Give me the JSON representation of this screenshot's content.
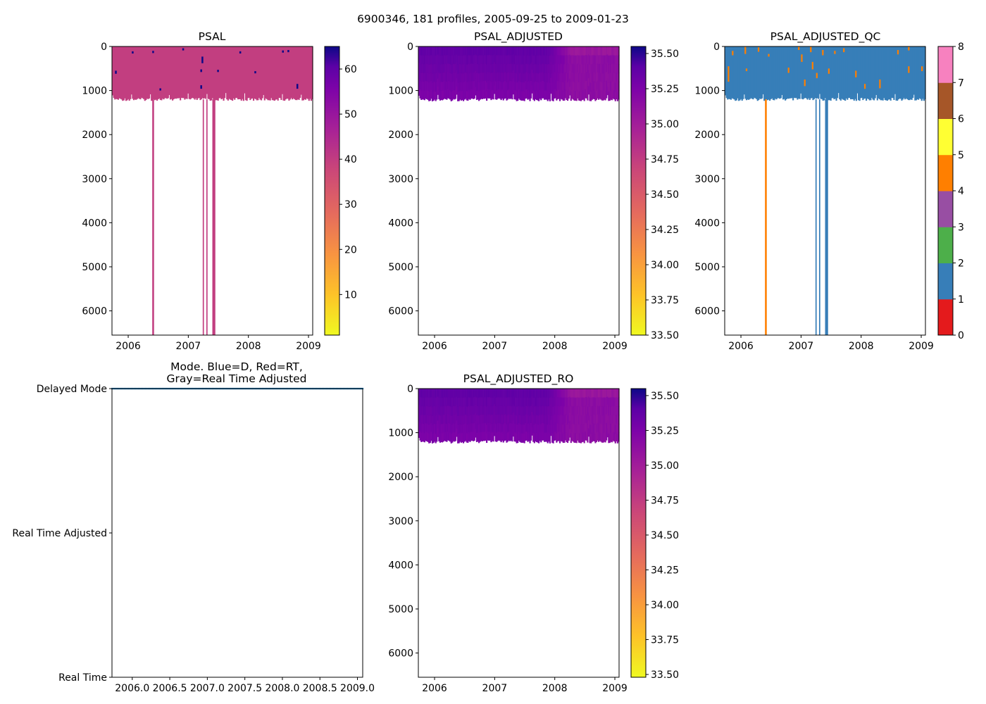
{
  "figure": {
    "suptitle": "6900346, 181 profiles, 2005-09-25 to 2009-01-23"
  },
  "chart_data": [
    {
      "id": "psal",
      "type": "heatmap",
      "title": "PSAL",
      "xlim": [
        2005.73,
        2009.07
      ],
      "ylim": [
        6550,
        0
      ],
      "x_ticks": [
        2006,
        2007,
        2008,
        2009
      ],
      "x_tick_labels": [
        "2006",
        "2007",
        "2008",
        "2009"
      ],
      "y_ticks": [
        0,
        1000,
        2000,
        3000,
        4000,
        5000,
        6000
      ],
      "y_tick_labels": [
        "0",
        "1000",
        "2000",
        "3000",
        "4000",
        "5000",
        "6000"
      ],
      "colormap": "plasma_r",
      "color_range": [
        1,
        65
      ],
      "base_value": 35.0,
      "profile_depth": 1200,
      "deep_profiles": [
        {
          "x": 2006.4,
          "width": 0.03,
          "depth": 6550
        },
        {
          "x": 2007.24,
          "width": 0.02,
          "depth": 6550
        },
        {
          "x": 2007.3,
          "width": 0.02,
          "depth": 6550
        },
        {
          "x": 2007.4,
          "width": 0.05,
          "depth": 6550
        }
      ],
      "spikes": [
        {
          "x": 2005.78,
          "y0": 550,
          "y1": 620,
          "value": 65
        },
        {
          "x": 2006.06,
          "y0": 110,
          "y1": 160,
          "value": 65
        },
        {
          "x": 2006.4,
          "y0": 100,
          "y1": 150,
          "value": 65
        },
        {
          "x": 2006.52,
          "y0": 950,
          "y1": 1000,
          "value": 65
        },
        {
          "x": 2006.9,
          "y0": 40,
          "y1": 90,
          "value": 65
        },
        {
          "x": 2007.22,
          "y0": 230,
          "y1": 380,
          "value": 65
        },
        {
          "x": 2007.2,
          "y0": 520,
          "y1": 580,
          "value": 65
        },
        {
          "x": 2007.2,
          "y0": 880,
          "y1": 960,
          "value": 65
        },
        {
          "x": 2007.48,
          "y0": 530,
          "y1": 580,
          "value": 65
        },
        {
          "x": 2007.85,
          "y0": 110,
          "y1": 160,
          "value": 65
        },
        {
          "x": 2008.1,
          "y0": 560,
          "y1": 610,
          "value": 65
        },
        {
          "x": 2008.56,
          "y0": 90,
          "y1": 140,
          "value": 65
        },
        {
          "x": 2008.65,
          "y0": 80,
          "y1": 130,
          "value": 65
        },
        {
          "x": 2008.8,
          "y0": 850,
          "y1": 960,
          "value": 65
        }
      ],
      "colorbar": {
        "ticks": [
          10,
          20,
          30,
          40,
          50,
          60
        ],
        "tick_labels": [
          "10",
          "20",
          "30",
          "40",
          "50",
          "60"
        ]
      }
    },
    {
      "id": "psal-adjusted",
      "type": "heatmap",
      "title": "PSAL_ADJUSTED",
      "xlim": [
        2005.73,
        2009.07
      ],
      "ylim": [
        6550,
        0
      ],
      "x_ticks": [
        2006,
        2007,
        2008,
        2009
      ],
      "x_tick_labels": [
        "2006",
        "2007",
        "2008",
        "2009"
      ],
      "y_ticks": [
        0,
        1000,
        2000,
        3000,
        4000,
        5000,
        6000
      ],
      "y_tick_labels": [
        "0",
        "1000",
        "2000",
        "3000",
        "4000",
        "5000",
        "6000"
      ],
      "colormap": "plasma_r",
      "color_range": [
        33.5,
        35.55
      ],
      "surface_value": 35.25,
      "bottom_value": 35.05,
      "late_value": 34.95,
      "profile_depth": 1200,
      "colorbar": {
        "ticks": [
          33.5,
          33.75,
          34.0,
          34.25,
          34.5,
          34.75,
          35.0,
          35.25,
          35.5
        ],
        "tick_labels": [
          "33.50",
          "33.75",
          "34.00",
          "34.25",
          "34.50",
          "34.75",
          "35.00",
          "35.25",
          "35.50"
        ]
      }
    },
    {
      "id": "psal-adjusted-qc",
      "type": "heatmap",
      "title": "PSAL_ADJUSTED_QC",
      "xlim": [
        2005.73,
        2009.07
      ],
      "ylim": [
        6550,
        0
      ],
      "x_ticks": [
        2006,
        2007,
        2008,
        2009
      ],
      "x_tick_labels": [
        "2006",
        "2007",
        "2008",
        "2009"
      ],
      "y_ticks": [
        0,
        1000,
        2000,
        3000,
        4000,
        5000,
        6000
      ],
      "y_tick_labels": [
        "0",
        "1000",
        "2000",
        "3000",
        "4000",
        "5000",
        "6000"
      ],
      "colormap": "Set1 (discrete)",
      "color_range": [
        0,
        8
      ],
      "base_flag": 1,
      "profile_depth": 1200,
      "deep_profiles": [
        {
          "x": 2006.4,
          "width": 0.03,
          "depth": 6550,
          "flag": 4
        },
        {
          "x": 2007.24,
          "width": 0.02,
          "depth": 6550,
          "flag": 1
        },
        {
          "x": 2007.3,
          "width": 0.02,
          "depth": 6550,
          "flag": 1
        },
        {
          "x": 2007.4,
          "width": 0.05,
          "depth": 6550,
          "flag": 1
        }
      ],
      "flag_4_patches": [
        {
          "x": 2005.78,
          "y0": 450,
          "y1": 800
        },
        {
          "x": 2005.85,
          "y0": 100,
          "y1": 200
        },
        {
          "x": 2006.06,
          "y0": 10,
          "y1": 170
        },
        {
          "x": 2006.08,
          "y0": 500,
          "y1": 560
        },
        {
          "x": 2006.28,
          "y0": 20,
          "y1": 120
        },
        {
          "x": 2006.45,
          "y0": 170,
          "y1": 230
        },
        {
          "x": 2006.78,
          "y0": 480,
          "y1": 600
        },
        {
          "x": 2006.95,
          "y0": 10,
          "y1": 80
        },
        {
          "x": 2007.0,
          "y0": 180,
          "y1": 350
        },
        {
          "x": 2007.05,
          "y0": 750,
          "y1": 900
        },
        {
          "x": 2007.15,
          "y0": 10,
          "y1": 130
        },
        {
          "x": 2007.18,
          "y0": 350,
          "y1": 520
        },
        {
          "x": 2007.25,
          "y0": 600,
          "y1": 720
        },
        {
          "x": 2007.35,
          "y0": 80,
          "y1": 200
        },
        {
          "x": 2007.45,
          "y0": 500,
          "y1": 620
        },
        {
          "x": 2007.55,
          "y0": 100,
          "y1": 170
        },
        {
          "x": 2007.7,
          "y0": 40,
          "y1": 130
        },
        {
          "x": 2007.9,
          "y0": 550,
          "y1": 700
        },
        {
          "x": 2008.05,
          "y0": 850,
          "y1": 960
        },
        {
          "x": 2008.3,
          "y0": 750,
          "y1": 950
        },
        {
          "x": 2008.6,
          "y0": 80,
          "y1": 180
        },
        {
          "x": 2008.78,
          "y0": 10,
          "y1": 90
        },
        {
          "x": 2008.78,
          "y0": 450,
          "y1": 600
        },
        {
          "x": 2009.0,
          "y0": 450,
          "y1": 560
        }
      ],
      "colorbar": {
        "categories": [
          0,
          1,
          2,
          3,
          4,
          5,
          6,
          7
        ],
        "colors": [
          "#e41a1c",
          "#377eb8",
          "#4daf4a",
          "#984ea3",
          "#ff7f00",
          "#ffff33",
          "#a65628",
          "#f781bf"
        ],
        "top_color": "#999999",
        "ticks": [
          0,
          1,
          2,
          3,
          4,
          5,
          6,
          7,
          8
        ],
        "tick_labels": [
          "0",
          "1",
          "2",
          "3",
          "4",
          "5",
          "6",
          "7",
          "8"
        ]
      }
    },
    {
      "id": "mode",
      "type": "scatter",
      "title_line1": "Mode. Blue=D, Red=RT,",
      "title_line2": "Gray=Real Time Adjusted",
      "xlim": [
        2005.73,
        2009.07
      ],
      "ylim": [
        0,
        2
      ],
      "x_ticks": [
        2006.0,
        2006.5,
        2007.0,
        2007.5,
        2008.0,
        2008.5,
        2009.0
      ],
      "x_tick_labels": [
        "2006.0",
        "2006.5",
        "2007.0",
        "2007.5",
        "2008.0",
        "2008.5",
        "2009.0"
      ],
      "y_ticks": [
        0,
        1,
        2
      ],
      "y_tick_labels": [
        "Real Time",
        "Real Time Adjusted",
        "Delayed Mode"
      ],
      "series": [
        {
          "name": "Delayed Mode",
          "mode_value": 2,
          "color": "#1f77b4",
          "n_points": 181,
          "start": 2005.73,
          "end": 2009.07
        }
      ]
    },
    {
      "id": "psal-adjusted-ro",
      "type": "heatmap",
      "title": "PSAL_ADJUSTED_RO",
      "xlim": [
        2005.73,
        2009.07
      ],
      "ylim": [
        6550,
        0
      ],
      "x_ticks": [
        2006,
        2007,
        2008,
        2009
      ],
      "x_tick_labels": [
        "2006",
        "2007",
        "2008",
        "2009"
      ],
      "y_ticks": [
        0,
        1000,
        2000,
        3000,
        4000,
        5000,
        6000
      ],
      "y_tick_labels": [
        "0",
        "1000",
        "2000",
        "3000",
        "4000",
        "5000",
        "6000"
      ],
      "colormap": "plasma_r",
      "color_range": [
        33.48,
        35.55
      ],
      "surface_value": 35.25,
      "bottom_value": 35.05,
      "late_value": 34.95,
      "profile_depth": 1200,
      "colorbar": {
        "ticks": [
          33.5,
          33.75,
          34.0,
          34.25,
          34.5,
          34.75,
          35.0,
          35.25,
          35.5
        ],
        "tick_labels": [
          "33.50",
          "33.75",
          "34.00",
          "34.25",
          "34.50",
          "34.75",
          "35.00",
          "35.25",
          "35.50"
        ]
      }
    }
  ]
}
